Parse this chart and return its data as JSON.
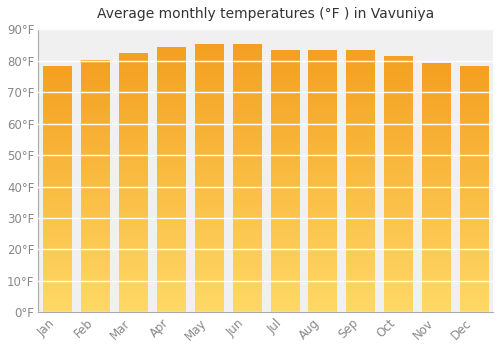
{
  "title": "Average monthly temperatures (°F ) in Vavuniya",
  "months": [
    "Jan",
    "Feb",
    "Mar",
    "Apr",
    "May",
    "Jun",
    "Jul",
    "Aug",
    "Sep",
    "Oct",
    "Nov",
    "Dec"
  ],
  "values": [
    78,
    80,
    82,
    84,
    85,
    85,
    83,
    83,
    83,
    81,
    79,
    78
  ],
  "bar_color_top": "#FFD966",
  "bar_color_bottom": "#F4A020",
  "ylim": [
    0,
    90
  ],
  "yticks": [
    0,
    10,
    20,
    30,
    40,
    50,
    60,
    70,
    80,
    90
  ],
  "background_color": "#ffffff",
  "plot_bg_color": "#f0f0f0",
  "grid_color": "#ffffff",
  "title_fontsize": 10,
  "tick_fontsize": 8.5,
  "tick_color": "#888888",
  "title_color": "#333333"
}
